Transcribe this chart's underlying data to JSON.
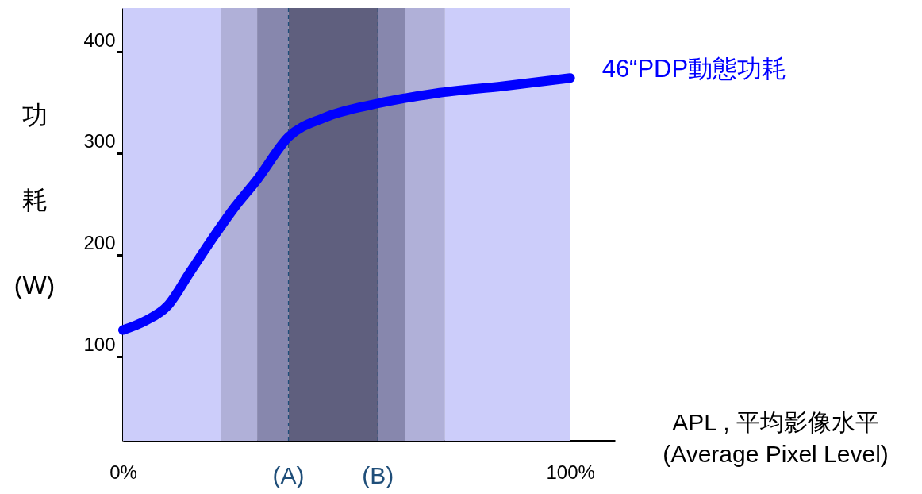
{
  "chart_data": {
    "type": "line",
    "xlabel": "APL , 平均影像水平\n(Average Pixel Level)",
    "ylabel": "功耗(W)",
    "x": [
      0,
      5,
      10,
      15,
      20,
      25,
      30,
      37,
      45,
      57,
      70,
      85,
      100
    ],
    "series": [
      {
        "name": "46“PDP動態功耗",
        "color": "#0000ff",
        "values": [
          126,
          135,
          150,
          183,
          216,
          247,
          274,
          316,
          335,
          349,
          359,
          366,
          374
        ]
      }
    ],
    "xlim": [
      0,
      110
    ],
    "xticks": [
      {
        "value": 0,
        "label": "0%"
      },
      {
        "value": 100,
        "label": "100%"
      }
    ],
    "ylim": [
      17,
      443
    ],
    "yticks": [
      100,
      200,
      300,
      400
    ],
    "grid": false,
    "legend": false,
    "line_style": "solid",
    "bands": [
      {
        "axis": "x",
        "from": 0,
        "to": 22,
        "color": "#cccdfa"
      },
      {
        "axis": "x",
        "from": 72,
        "to": 100,
        "color": "#cccdfa"
      },
      {
        "axis": "x",
        "from": 22,
        "to": 30,
        "color": "#b0b0d8"
      },
      {
        "axis": "x",
        "from": 30,
        "to": 37,
        "color": "#8787ad"
      },
      {
        "axis": "x",
        "from": 37,
        "to": 57,
        "color": "#5f5f7e"
      },
      {
        "axis": "x",
        "from": 57,
        "to": 63,
        "color": "#8787ad"
      },
      {
        "axis": "x",
        "from": 63,
        "to": 72,
        "color": "#b0b0d8"
      }
    ],
    "ref_lines": [
      {
        "axis": "x",
        "value": 37,
        "label": "(A)",
        "color": "#1f4e79",
        "line_style": "dashed"
      },
      {
        "axis": "x",
        "value": 57,
        "label": "(B)",
        "color": "#1f4e79",
        "line_style": "dashed"
      }
    ]
  }
}
